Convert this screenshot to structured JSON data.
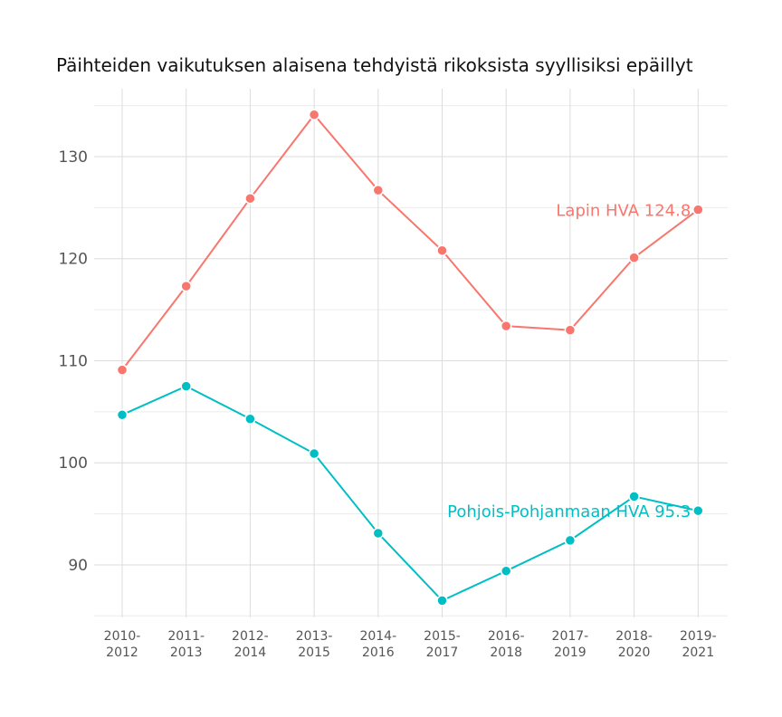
{
  "chart_data": {
    "type": "line",
    "title": "Päihteiden vaikutuksen alaisena tehdyistä rikoksista syyllisiksi epäillyt",
    "xlabel": "",
    "ylabel": "",
    "categories": [
      [
        "2010-",
        "2012"
      ],
      [
        "2011-",
        "2013"
      ],
      [
        "2012-",
        "2014"
      ],
      [
        "2013-",
        "2015"
      ],
      [
        "2014-",
        "2016"
      ],
      [
        "2015-",
        "2017"
      ],
      [
        "2016-",
        "2018"
      ],
      [
        "2017-",
        "2019"
      ],
      [
        "2018-",
        "2020"
      ],
      [
        "2019-",
        "2021"
      ]
    ],
    "ylim": [
      84.85,
      136.65
    ],
    "yticks": [
      90,
      100,
      110,
      120,
      130
    ],
    "grid": true,
    "legend": "none (end labels)",
    "series": [
      {
        "name": "Lapin HVA",
        "label": "Lapin HVA 124.8",
        "color": "#F8766D",
        "values": [
          109.1,
          117.3,
          125.9,
          134.1,
          126.7,
          120.8,
          113.4,
          113.0,
          120.1,
          124.8
        ]
      },
      {
        "name": "Pohjois-Pohjanmaan HVA",
        "label": "Pohjois-Pohjanmaan HVA 95.3",
        "color": "#00BFC4",
        "values": [
          104.7,
          107.5,
          104.3,
          100.9,
          93.1,
          86.5,
          89.4,
          92.4,
          96.7,
          95.3
        ]
      }
    ]
  }
}
